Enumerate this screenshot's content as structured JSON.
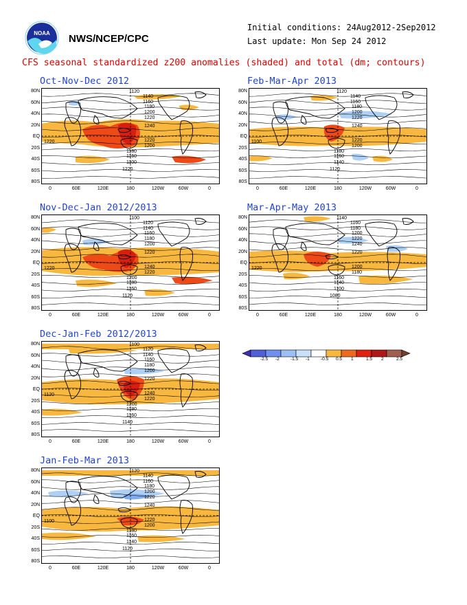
{
  "header": {
    "org": "NWS/NCEP/CPC",
    "logo_text": "NOAA",
    "initial_conditions": "Initial conditions: 24Aug2012-2Sep2012",
    "last_update": "Last update: Mon Sep 24 2012",
    "title": "CFS seasonal standardized z200 anomalies (shaded) and total (dm; contours)"
  },
  "lat_labels": [
    "80N",
    "60N",
    "40N",
    "20N",
    "EQ",
    "20S",
    "40S",
    "60S",
    "80S"
  ],
  "lon_labels": [
    "0",
    "60E",
    "120E",
    "180",
    "120W",
    "60W",
    "0"
  ],
  "panels": [
    {
      "title": "Oct-Nov-Dec 2012",
      "contours": [
        "1120",
        "1140",
        "1160",
        "1180",
        "1200",
        "1220",
        "1240",
        "1220",
        "1200",
        "1180",
        "1160",
        "1100",
        "1220",
        "1220"
      ]
    },
    {
      "title": "Feb-Mar-Apr 2013",
      "contours": [
        "1120",
        "1140",
        "1160",
        "1180",
        "1200",
        "1220",
        "1240",
        "1220",
        "1200",
        "1180",
        "1160",
        "1140",
        "1120",
        "1100"
      ]
    },
    {
      "title": "Nov-Dec-Jan 2012/2013",
      "contours": [
        "1100",
        "1120",
        "1140",
        "1160",
        "1180",
        "1200",
        "1220",
        "1240",
        "1220",
        "1200",
        "1180",
        "1160",
        "1120",
        "1220"
      ]
    },
    {
      "title": "Mar-Apr-May 2013",
      "contours": [
        "1140",
        "1160",
        "1180",
        "1200",
        "1220",
        "1240",
        "1220",
        "1200",
        "1180",
        "1160",
        "1140",
        "1100",
        "1080",
        "1220"
      ]
    },
    {
      "title": "Dec-Jan-Feb 2012/2013",
      "contours": [
        "1100",
        "1120",
        "1140",
        "1160",
        "1180",
        "1200",
        "1220",
        "1240",
        "1220",
        "1200",
        "1180",
        "1160",
        "1140",
        "1120"
      ]
    },
    {
      "title": "Jan-Feb-Mar 2013",
      "contours": [
        "1120",
        "1140",
        "1160",
        "1180",
        "1200",
        "1220",
        "1240",
        "1220",
        "1200",
        "1180",
        "1160",
        "1140",
        "1120",
        "1100"
      ]
    }
  ],
  "colorbar": {
    "labels": [
      "-2.5",
      "-2",
      "-1.5",
      "-1",
      "-0.5",
      "0.5",
      "1",
      "1.5",
      "2",
      "2.5"
    ],
    "colors": [
      "#4030b0",
      "#5060d8",
      "#6f90ee",
      "#9cc0f5",
      "#c8e0fa",
      "#ffffff",
      "#f8b840",
      "#ee6a20",
      "#e02010",
      "#b01818",
      "#a06050",
      "#704030"
    ]
  }
}
